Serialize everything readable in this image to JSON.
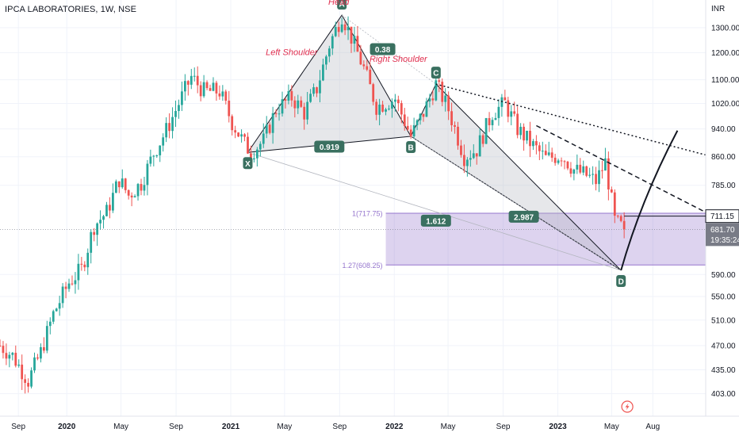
{
  "header": {
    "symbol_title": "IPCA LABORATORIES, 1W, NSE",
    "currency": "INR"
  },
  "price_axis": {
    "ticks": [
      1300.0,
      1200.0,
      1100.0,
      1020.0,
      940.0,
      860.0,
      785.0,
      711.15,
      681.7,
      590.0,
      550.0,
      510.0,
      470.0,
      435.0,
      403.0
    ],
    "labels": [
      "1300.00",
      "1200.00",
      "1100.00",
      "1020.00",
      "940.00",
      "860.00",
      "785.00",
      "590.00",
      "550.00",
      "510.00",
      "470.00",
      "435.00",
      "403.00"
    ]
  },
  "time_axis": {
    "labels": [
      "Sep",
      "2020",
      "May",
      "Sep",
      "2021",
      "May",
      "Sep",
      "2022",
      "May",
      "Sep",
      "2023",
      "May",
      "Aug"
    ],
    "bold": [
      "2020",
      "2021",
      "2022",
      "2023"
    ]
  },
  "price_tags": {
    "line_price": "711.15",
    "last_price": "681.70",
    "countdown": "19:35:24",
    "line_color": "#131722",
    "last_color": "#787b86"
  },
  "pattern": {
    "points": [
      {
        "label": "X",
        "date": "2021-02-08",
        "price": 872
      },
      {
        "label": "A",
        "date": "2021-09-06",
        "price": 1353
      },
      {
        "label": "B",
        "date": "2022-02-07",
        "price": 918
      },
      {
        "label": "C",
        "date": "2022-04-04",
        "price": 1085
      },
      {
        "label": "D",
        "date": "2023-05-22",
        "price": 598
      }
    ],
    "ratios": [
      {
        "text": "0.38",
        "date": "2021-12-06",
        "price": 1212
      },
      {
        "text": "0.919",
        "date": "2021-08-09",
        "price": 887
      },
      {
        "text": "1.612",
        "date": "2022-04-04",
        "price": 700
      },
      {
        "text": "2.987",
        "date": "2022-10-17",
        "price": 709
      }
    ],
    "annotations": [
      {
        "text": "Head",
        "date": "2021-08-30",
        "price": 1398
      },
      {
        "text": "Left Shoulder",
        "date": "2021-05-17",
        "price": 1190
      },
      {
        "text": "Right Shoulder",
        "date": "2022-01-10",
        "price": 1165
      }
    ],
    "fill_color": "#b2b5be",
    "label_color": "#e03050",
    "tag_color": "#3a7060"
  },
  "fib_zone": {
    "top_label": "1(717.75)",
    "bottom_label": "1.27(608.25)",
    "top_price": 717.75,
    "bottom_price": 608.25,
    "start_date": "2021-12-13",
    "color": "#9575cd"
  },
  "chart_data": {
    "type": "candlestick",
    "title": "IPCA LABORATORIES, 1W, NSE",
    "ylabel": "INR",
    "y_scale": "log",
    "ylim": [
      375,
      1420
    ],
    "xlim": [
      "2019-08-05",
      "2023-11-27"
    ],
    "up_color": "#26a69a",
    "down_color": "#ef5350",
    "grid": true,
    "trendlines": [
      {
        "name": "dotted",
        "from": [
          "2022-04-04",
          1085
        ],
        "to": [
          "2023-11-27",
          865
        ]
      },
      {
        "name": "dashed",
        "from": [
          "2022-11-14",
          950
        ],
        "to": [
          "2023-11-27",
          720
        ]
      },
      {
        "name": "projection",
        "from": [
          "2023-05-22",
          598
        ],
        "via": [
          "2023-07-24",
          790
        ],
        "to": [
          "2023-09-25",
          935
        ]
      }
    ],
    "close_series": [
      [
        "2019-08-05",
        470
      ],
      [
        "2019-09-02",
        455
      ],
      [
        "2019-10-07",
        420
      ],
      [
        "2019-11-04",
        460
      ],
      [
        "2019-12-02",
        520
      ],
      [
        "2020-01-06",
        575
      ],
      [
        "2020-02-03",
        600
      ],
      [
        "2020-03-02",
        690
      ],
      [
        "2020-03-30",
        720
      ],
      [
        "2020-04-27",
        800
      ],
      [
        "2020-05-18",
        760
      ],
      [
        "2020-06-15",
        790
      ],
      [
        "2020-07-13",
        870
      ],
      [
        "2020-08-10",
        935
      ],
      [
        "2020-09-07",
        1020
      ],
      [
        "2020-10-05",
        1110
      ],
      [
        "2020-11-02",
        1060
      ],
      [
        "2020-12-07",
        1060
      ],
      [
        "2021-01-04",
        960
      ],
      [
        "2021-02-01",
        895
      ],
      [
        "2021-02-15",
        872
      ],
      [
        "2021-03-15",
        905
      ],
      [
        "2021-04-12",
        1000
      ],
      [
        "2021-05-17",
        1040
      ],
      [
        "2021-06-14",
        990
      ],
      [
        "2021-07-12",
        1070
      ],
      [
        "2021-08-09",
        1230
      ],
      [
        "2021-09-06",
        1353
      ],
      [
        "2021-09-27",
        1260
      ],
      [
        "2021-10-25",
        1140
      ],
      [
        "2021-11-22",
        1010
      ],
      [
        "2022-01-03",
        1035
      ],
      [
        "2022-02-07",
        918
      ],
      [
        "2022-03-07",
        990
      ],
      [
        "2022-04-04",
        1085
      ],
      [
        "2022-05-02",
        1000
      ],
      [
        "2022-06-06",
        860
      ],
      [
        "2022-07-04",
        880
      ],
      [
        "2022-08-08",
        990
      ],
      [
        "2022-09-05",
        1020
      ],
      [
        "2022-10-03",
        940
      ],
      [
        "2022-11-07",
        890
      ],
      [
        "2022-12-05",
        855
      ],
      [
        "2023-01-09",
        865
      ],
      [
        "2023-02-06",
        825
      ],
      [
        "2023-03-06",
        810
      ],
      [
        "2023-03-27",
        795
      ],
      [
        "2023-04-17",
        845
      ],
      [
        "2023-05-08",
        700
      ],
      [
        "2023-05-29",
        681.7
      ]
    ]
  }
}
